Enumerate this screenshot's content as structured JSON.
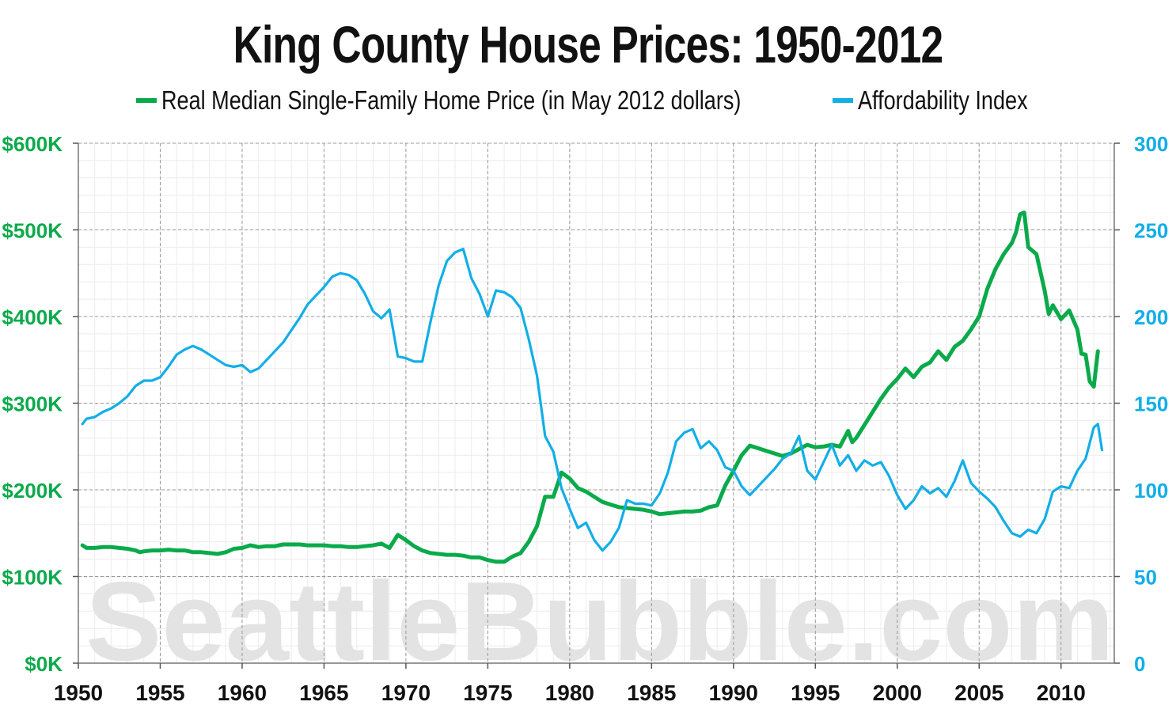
{
  "title": "King County House Prices: 1950-2012",
  "watermark": "SeattleBubble.com",
  "colors": {
    "price": "#0aaa4b",
    "afford": "#12aee8",
    "grid": "#999999",
    "minor_grid": "#ececec"
  },
  "chart_data": {
    "type": "line",
    "title": "King County House Prices: 1950-2012",
    "legend_position": "top",
    "x_range": [
      1950,
      2012
    ],
    "x_ticks": [
      "1950",
      "1955",
      "1960",
      "1965",
      "1970",
      "1975",
      "1980",
      "1985",
      "1990",
      "1995",
      "2000",
      "2005",
      "2010"
    ],
    "y_left": {
      "range": [
        0,
        600000
      ],
      "ticks": [
        "$0K",
        "$100K",
        "$200K",
        "$300K",
        "$400K",
        "$500K",
        "$600K"
      ]
    },
    "y_right": {
      "range": [
        0,
        300
      ],
      "ticks": [
        "0",
        "50",
        "100",
        "150",
        "200",
        "250",
        "300"
      ]
    },
    "grid": true,
    "series": [
      {
        "name": "Real Median Single-Family Home Price (in May 2012 dollars)",
        "axis": "left",
        "color": "#0aaa4b",
        "points": [
          [
            1950.25,
            136000
          ],
          [
            1950.5,
            133000
          ],
          [
            1951,
            133000
          ],
          [
            1951.5,
            134000
          ],
          [
            1952,
            134000
          ],
          [
            1952.5,
            133000
          ],
          [
            1953,
            132000
          ],
          [
            1953.5,
            130000
          ],
          [
            1953.75,
            128000
          ],
          [
            1954,
            129000
          ],
          [
            1954.5,
            130000
          ],
          [
            1955,
            130000
          ],
          [
            1955.5,
            131000
          ],
          [
            1956,
            130000
          ],
          [
            1956.5,
            130000
          ],
          [
            1957,
            128000
          ],
          [
            1957.5,
            128000
          ],
          [
            1958,
            127000
          ],
          [
            1958.5,
            126000
          ],
          [
            1959,
            128000
          ],
          [
            1959.5,
            132000
          ],
          [
            1960,
            133000
          ],
          [
            1960.5,
            136000
          ],
          [
            1961,
            134000
          ],
          [
            1961.5,
            135000
          ],
          [
            1962,
            135000
          ],
          [
            1962.5,
            137000
          ],
          [
            1963,
            137000
          ],
          [
            1963.5,
            137000
          ],
          [
            1964,
            136000
          ],
          [
            1964.5,
            136000
          ],
          [
            1965,
            136000
          ],
          [
            1965.5,
            135000
          ],
          [
            1966,
            135000
          ],
          [
            1966.5,
            134000
          ],
          [
            1967,
            134000
          ],
          [
            1967.5,
            135000
          ],
          [
            1968,
            136000
          ],
          [
            1968.5,
            138000
          ],
          [
            1969,
            133000
          ],
          [
            1969.5,
            148000
          ],
          [
            1970,
            142000
          ],
          [
            1970.5,
            135000
          ],
          [
            1971,
            130000
          ],
          [
            1971.5,
            127000
          ],
          [
            1972,
            126000
          ],
          [
            1972.5,
            125000
          ],
          [
            1973,
            125000
          ],
          [
            1973.5,
            124000
          ],
          [
            1974,
            122000
          ],
          [
            1974.5,
            122000
          ],
          [
            1975,
            119000
          ],
          [
            1975.5,
            117000
          ],
          [
            1976,
            117000
          ],
          [
            1976.5,
            123000
          ],
          [
            1977,
            127000
          ],
          [
            1977.5,
            140000
          ],
          [
            1978,
            158000
          ],
          [
            1978.5,
            192000
          ],
          [
            1979,
            192000
          ],
          [
            1979.5,
            220000
          ],
          [
            1980,
            213000
          ],
          [
            1980.5,
            202000
          ],
          [
            1981,
            198000
          ],
          [
            1981.5,
            192000
          ],
          [
            1982,
            186000
          ],
          [
            1982.5,
            183000
          ],
          [
            1983,
            180000
          ],
          [
            1983.5,
            179000
          ],
          [
            1984,
            178000
          ],
          [
            1984.5,
            177000
          ],
          [
            1985,
            175000
          ],
          [
            1985.5,
            172000
          ],
          [
            1986,
            173000
          ],
          [
            1986.5,
            174000
          ],
          [
            1987,
            175000
          ],
          [
            1987.5,
            175000
          ],
          [
            1988,
            176000
          ],
          [
            1988.5,
            180000
          ],
          [
            1989,
            182000
          ],
          [
            1989.5,
            205000
          ],
          [
            1990,
            222000
          ],
          [
            1990.5,
            240000
          ],
          [
            1991,
            251000
          ],
          [
            1991.5,
            248000
          ],
          [
            1992,
            245000
          ],
          [
            1992.5,
            242000
          ],
          [
            1993,
            239000
          ],
          [
            1993.5,
            242000
          ],
          [
            1994,
            247000
          ],
          [
            1994.5,
            252000
          ],
          [
            1995,
            249000
          ],
          [
            1995.5,
            250000
          ],
          [
            1996,
            252000
          ],
          [
            1996.5,
            250000
          ],
          [
            1997,
            268000
          ],
          [
            1997.25,
            255000
          ],
          [
            1997.5,
            260000
          ],
          [
            1998,
            275000
          ],
          [
            1998.5,
            290000
          ],
          [
            1999,
            305000
          ],
          [
            1999.5,
            318000
          ],
          [
            2000,
            328000
          ],
          [
            2000.5,
            340000
          ],
          [
            2001,
            330000
          ],
          [
            2001.5,
            342000
          ],
          [
            2002,
            347000
          ],
          [
            2002.5,
            360000
          ],
          [
            2003,
            350000
          ],
          [
            2003.5,
            365000
          ],
          [
            2004,
            372000
          ],
          [
            2004.5,
            385000
          ],
          [
            2005,
            400000
          ],
          [
            2005.5,
            432000
          ],
          [
            2006,
            455000
          ],
          [
            2006.5,
            472000
          ],
          [
            2007,
            485000
          ],
          [
            2007.25,
            497000
          ],
          [
            2007.5,
            518000
          ],
          [
            2007.75,
            520000
          ],
          [
            2008,
            480000
          ],
          [
            2008.5,
            472000
          ],
          [
            2009,
            430000
          ],
          [
            2009.25,
            403000
          ],
          [
            2009.5,
            413000
          ],
          [
            2010,
            397000
          ],
          [
            2010.5,
            407000
          ],
          [
            2011,
            385000
          ],
          [
            2011.25,
            357000
          ],
          [
            2011.5,
            356000
          ],
          [
            2011.75,
            325000
          ],
          [
            2012,
            319000
          ],
          [
            2012.25,
            360000
          ]
        ]
      },
      {
        "name": "Affordability Index",
        "axis": "right",
        "color": "#12aee8",
        "points": [
          [
            1950.25,
            138
          ],
          [
            1950.5,
            141
          ],
          [
            1951,
            142
          ],
          [
            1951.5,
            145
          ],
          [
            1952,
            147
          ],
          [
            1952.5,
            150
          ],
          [
            1953,
            154
          ],
          [
            1953.5,
            160
          ],
          [
            1954,
            163
          ],
          [
            1954.5,
            163
          ],
          [
            1955,
            165
          ],
          [
            1955.5,
            171
          ],
          [
            1956,
            178
          ],
          [
            1956.5,
            181
          ],
          [
            1957,
            183
          ],
          [
            1957.5,
            181
          ],
          [
            1958,
            178
          ],
          [
            1958.5,
            175
          ],
          [
            1959,
            172
          ],
          [
            1959.5,
            171
          ],
          [
            1960,
            172
          ],
          [
            1960.5,
            168
          ],
          [
            1961,
            170
          ],
          [
            1961.5,
            175
          ],
          [
            1962,
            180
          ],
          [
            1962.5,
            185
          ],
          [
            1963,
            192
          ],
          [
            1963.5,
            199
          ],
          [
            1964,
            207
          ],
          [
            1964.5,
            212
          ],
          [
            1965,
            217
          ],
          [
            1965.5,
            223
          ],
          [
            1966,
            225
          ],
          [
            1966.5,
            224
          ],
          [
            1967,
            221
          ],
          [
            1967.5,
            213
          ],
          [
            1968,
            203
          ],
          [
            1968.5,
            199
          ],
          [
            1969,
            204
          ],
          [
            1969.5,
            177
          ],
          [
            1970,
            176
          ],
          [
            1970.5,
            174
          ],
          [
            1971,
            174
          ],
          [
            1971.5,
            197
          ],
          [
            1972,
            218
          ],
          [
            1972.5,
            232
          ],
          [
            1973,
            237
          ],
          [
            1973.5,
            239
          ],
          [
            1974,
            222
          ],
          [
            1974.5,
            213
          ],
          [
            1975,
            200
          ],
          [
            1975.5,
            215
          ],
          [
            1976,
            214
          ],
          [
            1976.5,
            211
          ],
          [
            1977,
            205
          ],
          [
            1977.5,
            187
          ],
          [
            1978,
            166
          ],
          [
            1978.5,
            131
          ],
          [
            1979,
            122
          ],
          [
            1979.5,
            101
          ],
          [
            1980,
            89
          ],
          [
            1980.5,
            78
          ],
          [
            1981,
            81
          ],
          [
            1981.5,
            71
          ],
          [
            1982,
            65
          ],
          [
            1982.5,
            70
          ],
          [
            1983,
            78
          ],
          [
            1983.5,
            94
          ],
          [
            1984,
            92
          ],
          [
            1984.5,
            92
          ],
          [
            1985,
            91
          ],
          [
            1985.5,
            98
          ],
          [
            1986,
            110
          ],
          [
            1986.5,
            128
          ],
          [
            1987,
            133
          ],
          [
            1987.5,
            135
          ],
          [
            1988,
            124
          ],
          [
            1988.5,
            128
          ],
          [
            1989,
            123
          ],
          [
            1989.5,
            113
          ],
          [
            1990,
            111
          ],
          [
            1990.5,
            102
          ],
          [
            1991,
            97
          ],
          [
            1991.5,
            102
          ],
          [
            1992,
            107
          ],
          [
            1992.5,
            112
          ],
          [
            1993,
            118
          ],
          [
            1993.5,
            121
          ],
          [
            1994,
            131
          ],
          [
            1994.5,
            111
          ],
          [
            1995,
            106
          ],
          [
            1995.5,
            116
          ],
          [
            1996,
            126
          ],
          [
            1996.5,
            114
          ],
          [
            1997,
            120
          ],
          [
            1997.5,
            111
          ],
          [
            1998,
            117
          ],
          [
            1998.5,
            114
          ],
          [
            1999,
            116
          ],
          [
            1999.5,
            108
          ],
          [
            2000,
            97
          ],
          [
            2000.5,
            89
          ],
          [
            2001,
            94
          ],
          [
            2001.5,
            102
          ],
          [
            2002,
            98
          ],
          [
            2002.5,
            101
          ],
          [
            2003,
            96
          ],
          [
            2003.5,
            105
          ],
          [
            2004,
            117
          ],
          [
            2004.5,
            104
          ],
          [
            2005,
            99
          ],
          [
            2005.5,
            95
          ],
          [
            2006,
            90
          ],
          [
            2006.5,
            82
          ],
          [
            2007,
            75
          ],
          [
            2007.5,
            73
          ],
          [
            2008,
            77
          ],
          [
            2008.5,
            75
          ],
          [
            2009,
            83
          ],
          [
            2009.5,
            99
          ],
          [
            2010,
            102
          ],
          [
            2010.5,
            101
          ],
          [
            2011,
            111
          ],
          [
            2011.5,
            118
          ],
          [
            2012,
            136
          ],
          [
            2012.25,
            138
          ],
          [
            2012.5,
            123
          ]
        ]
      }
    ]
  }
}
